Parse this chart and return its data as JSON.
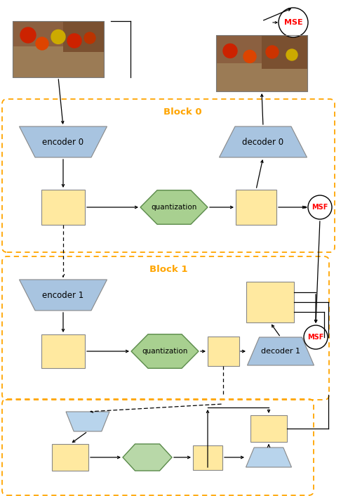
{
  "fig_width": 4.96,
  "fig_height": 7.06,
  "dpi": 100,
  "bg_color": "#ffffff",
  "orange": "#FFA500",
  "blue": "#A8C4E0",
  "yellow": "#FFE9A0",
  "green": "#90C97C",
  "green_edge": "#5A8A4A",
  "block0_label": "Block 0",
  "block1_label": "Block 1",
  "enc0_label": "encoder 0",
  "dec0_label": "decoder 0",
  "enc1_label": "encoder 1",
  "dec1_label": "decoder 1",
  "quant_label": "quantization",
  "mse_label": "MSF",
  "mse_top_label": "MSE",
  "red": "#FF0000"
}
